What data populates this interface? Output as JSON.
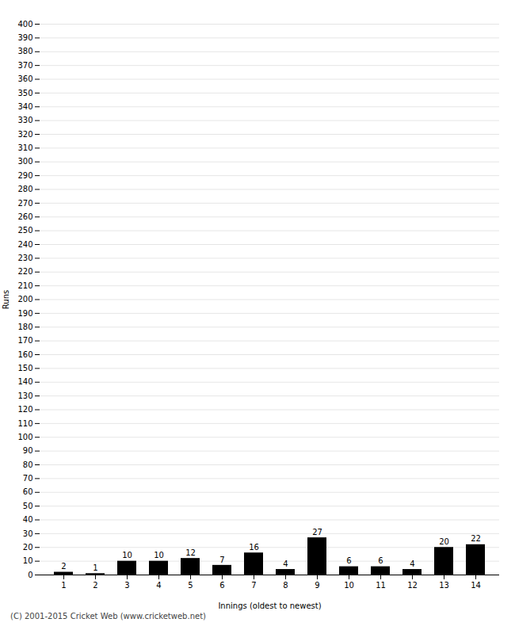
{
  "chart_data": {
    "type": "bar",
    "xlabel": "Innings (oldest to newest)",
    "ylabel": "Runs",
    "categories": [
      1,
      2,
      3,
      4,
      5,
      6,
      7,
      8,
      9,
      10,
      11,
      12,
      13,
      14
    ],
    "values": [
      2,
      1,
      10,
      10,
      12,
      7,
      16,
      4,
      27,
      6,
      6,
      4,
      20,
      22
    ],
    "ylim": [
      0,
      400
    ],
    "yticks": [
      0,
      10,
      20,
      30,
      40,
      50,
      60,
      70,
      80,
      90,
      100,
      110,
      120,
      130,
      140,
      150,
      160,
      170,
      180,
      190,
      200,
      210,
      220,
      230,
      240,
      250,
      260,
      270,
      280,
      290,
      300,
      310,
      320,
      330,
      340,
      350,
      360,
      370,
      380,
      390,
      400
    ],
    "grid": true,
    "data_labels": true,
    "footer": "(C) 2001-2015 Cricket Web (www.cricketweb.net)"
  }
}
